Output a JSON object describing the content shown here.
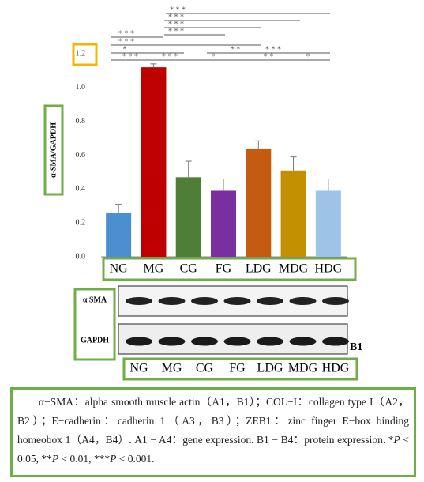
{
  "chart_data": {
    "type": "bar",
    "y_label": "α-SMA/GAPDH",
    "categories": [
      "NG",
      "MG",
      "CG",
      "FG",
      "LDG",
      "MDG",
      "HDG"
    ],
    "values": [
      0.26,
      1.12,
      0.47,
      0.39,
      0.64,
      0.51,
      0.39
    ],
    "errors": [
      0.05,
      0.02,
      0.095,
      0.07,
      0.045,
      0.08,
      0.07
    ],
    "colors": [
      "#4a8fd0",
      "#c00000",
      "#4f7f36",
      "#7a2fa0",
      "#c55a11",
      "#c29000",
      "#9dc3e6"
    ],
    "ylim": [
      0,
      1.2
    ],
    "yticks": [
      {
        "value": 0,
        "label": "0.0"
      },
      0.2,
      0.4,
      0.6,
      0.8,
      {
        "value": 1,
        "label": "1.0"
      },
      1.2
    ],
    "significance": [
      "* * *",
      "* * *",
      "* * *",
      "* * *",
      "* * *",
      "* * *",
      "*",
      "* *",
      "* * *",
      "* * *",
      "* * *",
      "*",
      "* *",
      "*"
    ]
  },
  "blot": {
    "rows": [
      "α SMA",
      "GAPDH"
    ],
    "panel": "B1"
  },
  "caption": [
    "α−SMA：alpha smooth muscle actin（A1，B1）；COL−I：collagen type I（A2，B2）；E−cadherin：cadherin 1（A3，B3）；ZEB1：zinc finger E−box binding homeobox 1（A4，B4）. A1 − A4：gene expression. B1 − B4：protein expression. *",
    "P",
    " < 0.05, **",
    "P",
    " < 0.01, ***",
    "P",
    " < 0.001."
  ]
}
